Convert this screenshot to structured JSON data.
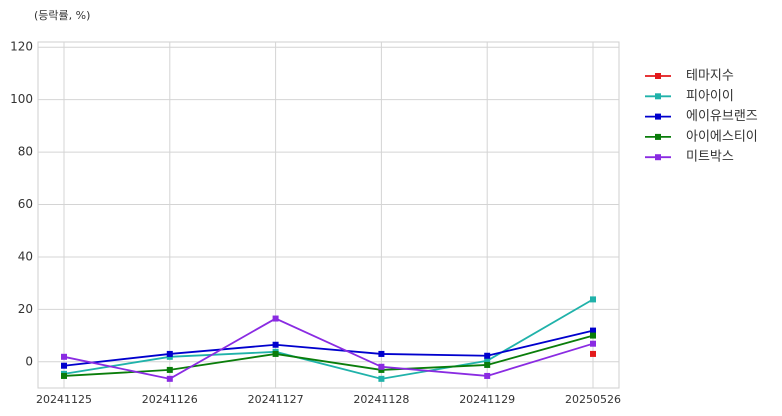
{
  "chart_data": {
    "type": "line",
    "ylabel": "(등락률, %)",
    "categories": [
      "20241125",
      "20241126",
      "20241127",
      "20241128",
      "20241129",
      "20250526"
    ],
    "series": [
      {
        "name": "테마지수",
        "color": "#e31a1c",
        "values": [
          null,
          null,
          null,
          null,
          null,
          3
        ]
      },
      {
        "name": "피아이이",
        "color": "#20b2aa",
        "values": [
          -4.6,
          1.9,
          3.8,
          -6.5,
          0.4,
          23.8
        ]
      },
      {
        "name": "에이유브랜즈",
        "color": "#0000cd",
        "values": [
          -1.5,
          3,
          6.5,
          3,
          2.3,
          11.9
        ]
      },
      {
        "name": "아이에스티이",
        "color": "#0a7d0a",
        "values": [
          -5.4,
          -3.1,
          3,
          -3.1,
          -1.2,
          10
        ]
      },
      {
        "name": "미트박스",
        "color": "#8a2be2",
        "values": [
          1.9,
          -6.5,
          16.5,
          -1.9,
          -5.4,
          6.9
        ]
      }
    ],
    "ylim": [
      -10,
      122
    ],
    "yticks": [
      0,
      20,
      40,
      60,
      80,
      100,
      120
    ],
    "grid": true,
    "legend": "right"
  }
}
